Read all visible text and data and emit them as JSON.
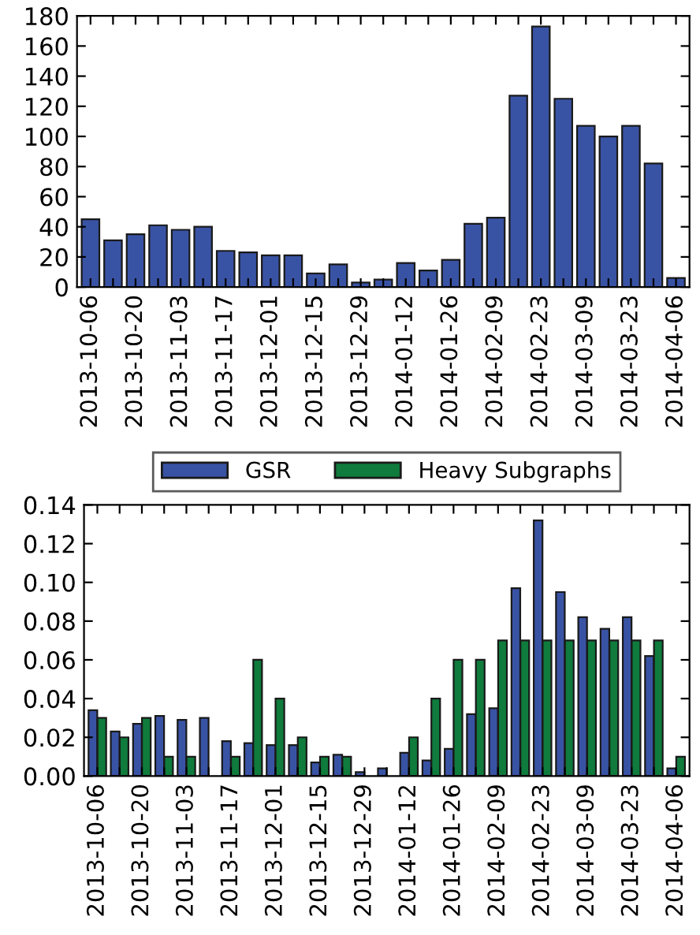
{
  "chart_data": [
    {
      "type": "bar",
      "categories": [
        "2013-10-06",
        null,
        "2013-10-20",
        null,
        "2013-11-03",
        null,
        "2013-11-17",
        null,
        "2013-12-01",
        null,
        "2013-12-15",
        null,
        "2013-12-29",
        null,
        "2014-01-12",
        null,
        "2014-01-26",
        null,
        "2014-02-09",
        null,
        "2014-02-23",
        null,
        "2014-03-09",
        null,
        "2014-03-23",
        null,
        "2014-04-06"
      ],
      "series": [
        {
          "color": "#3953a4",
          "values": [
            45,
            31,
            35,
            41,
            38,
            40,
            24,
            23,
            21,
            21,
            9,
            15,
            3,
            5,
            16,
            11,
            18,
            42,
            46,
            127,
            173,
            125,
            107,
            100,
            107,
            82,
            6
          ]
        }
      ],
      "ylim": [
        0,
        180
      ],
      "yticks": [
        0,
        20,
        40,
        60,
        80,
        100,
        120,
        140,
        160,
        180
      ],
      "grid": false,
      "legend": false
    },
    {
      "type": "bar",
      "categories": [
        "2013-10-06",
        null,
        "2013-10-20",
        null,
        "2013-11-03",
        null,
        "2013-11-17",
        null,
        "2013-12-01",
        null,
        "2013-12-15",
        null,
        "2013-12-29",
        null,
        "2014-01-12",
        null,
        "2014-01-26",
        null,
        "2014-02-09",
        null,
        "2014-02-23",
        null,
        "2014-03-09",
        null,
        "2014-03-23",
        null,
        "2014-04-06"
      ],
      "series": [
        {
          "name": "GSR",
          "color": "#3953a4",
          "values": [
            0.034,
            0.023,
            0.027,
            0.031,
            0.029,
            0.03,
            0.018,
            0.017,
            0.016,
            0.016,
            0.007,
            0.011,
            0.002,
            0.004,
            0.012,
            0.008,
            0.014,
            0.032,
            0.035,
            0.097,
            0.132,
            0.095,
            0.082,
            0.076,
            0.082,
            0.062,
            0.004
          ]
        },
        {
          "name": "Heavy Subgraphs",
          "color": "#0f7b3c",
          "values": [
            0.03,
            0.02,
            0.03,
            0.01,
            0.01,
            0,
            0.01,
            0.06,
            0.04,
            0.02,
            0.01,
            0.01,
            0,
            0,
            0.02,
            0.04,
            0.06,
            0.06,
            0.07,
            0.07,
            0.07,
            0.07,
            0.07,
            0.07,
            0.07,
            0.07,
            0.01
          ]
        }
      ],
      "ylim": [
        0,
        0.14
      ],
      "yticks": [
        {
          "value": 0,
          "label": "0.00"
        },
        {
          "value": 0.02,
          "label": "0.02"
        },
        {
          "value": 0.04,
          "label": "0.04"
        },
        {
          "value": 0.06,
          "label": "0.06"
        },
        {
          "value": 0.08,
          "label": "0.08"
        },
        {
          "value": 0.1,
          "label": "0.10"
        },
        {
          "value": 0.12,
          "label": "0.12"
        },
        {
          "value": 0.14,
          "label": "0.14"
        }
      ],
      "grid": false,
      "legend": "top"
    }
  ]
}
